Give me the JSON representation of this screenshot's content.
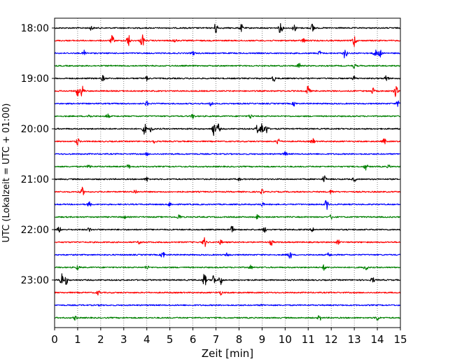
{
  "chart_data": {
    "type": "line",
    "subtype": "helicorder",
    "xlabel": "Zeit  [min]",
    "ylabel": "UTC (Lokalzeit = UTC + 01:00)",
    "xlim": [
      0,
      15
    ],
    "x_ticks": [
      0,
      1,
      2,
      3,
      4,
      5,
      6,
      7,
      8,
      9,
      10,
      11,
      12,
      13,
      14,
      15
    ],
    "vertical_grid": true,
    "y_ticks": [
      "18:00",
      "19:00",
      "20:00",
      "21:00",
      "22:00",
      "23:00"
    ],
    "trace_colors": [
      "#000000",
      "#ff0000",
      "#0000ff",
      "#008000"
    ],
    "traces": [
      {
        "time": "18:00",
        "events": [
          [
            1.6,
            3
          ],
          [
            7.0,
            8
          ],
          [
            8.1,
            5
          ],
          [
            9.8,
            9
          ],
          [
            10.4,
            5
          ],
          [
            11.2,
            7
          ]
        ]
      },
      {
        "time": "18:15",
        "events": [
          [
            2.5,
            7
          ],
          [
            3.2,
            9
          ],
          [
            3.8,
            10
          ],
          [
            5.2,
            3
          ],
          [
            10.8,
            3
          ],
          [
            13.0,
            9
          ]
        ]
      },
      {
        "time": "18:30",
        "events": [
          [
            1.3,
            4
          ],
          [
            6.0,
            3
          ],
          [
            11.5,
            3
          ],
          [
            12.6,
            8
          ],
          [
            13.9,
            5
          ],
          [
            14.1,
            7
          ]
        ]
      },
      {
        "time": "18:45",
        "events": [
          [
            10.6,
            4
          ],
          [
            13.0,
            3
          ]
        ]
      },
      {
        "time": "19:00",
        "events": [
          [
            2.1,
            4
          ],
          [
            4.0,
            3
          ],
          [
            9.5,
            4
          ],
          [
            13.0,
            3
          ],
          [
            14.4,
            5
          ]
        ]
      },
      {
        "time": "19:15",
        "events": [
          [
            1.0,
            7
          ],
          [
            1.2,
            8
          ],
          [
            11.0,
            8
          ],
          [
            13.8,
            4
          ],
          [
            14.8,
            8
          ]
        ]
      },
      {
        "time": "19:30",
        "events": [
          [
            4.0,
            3
          ],
          [
            6.8,
            4
          ],
          [
            10.4,
            3
          ],
          [
            14.9,
            4
          ]
        ]
      },
      {
        "time": "19:45",
        "events": [
          [
            1.5,
            3
          ],
          [
            2.3,
            3
          ],
          [
            6.0,
            3
          ],
          [
            8.5,
            3
          ]
        ]
      },
      {
        "time": "20:00",
        "events": [
          [
            3.9,
            8
          ],
          [
            4.2,
            5
          ],
          [
            6.9,
            9
          ],
          [
            7.1,
            7
          ],
          [
            8.8,
            6
          ],
          [
            9.0,
            11
          ],
          [
            9.2,
            6
          ]
        ]
      },
      {
        "time": "20:15",
        "events": [
          [
            1.0,
            5
          ],
          [
            4.3,
            3
          ],
          [
            9.7,
            5
          ],
          [
            11.2,
            4
          ],
          [
            14.3,
            4
          ]
        ]
      },
      {
        "time": "20:30",
        "events": [
          [
            4.0,
            2
          ],
          [
            10.0,
            3
          ]
        ]
      },
      {
        "time": "20:45",
        "events": [
          [
            1.5,
            3
          ],
          [
            3.2,
            3
          ],
          [
            13.5,
            5
          ],
          [
            14.5,
            2
          ]
        ]
      },
      {
        "time": "21:00",
        "events": [
          [
            4.0,
            3
          ],
          [
            8.0,
            2
          ],
          [
            11.7,
            5
          ],
          [
            13.0,
            3
          ]
        ]
      },
      {
        "time": "21:15",
        "events": [
          [
            1.2,
            6
          ],
          [
            3.5,
            3
          ],
          [
            9.0,
            3
          ],
          [
            12.0,
            3
          ]
        ]
      },
      {
        "time": "21:30",
        "events": [
          [
            1.5,
            4
          ],
          [
            5.0,
            3
          ],
          [
            9.0,
            3
          ],
          [
            11.8,
            7
          ]
        ]
      },
      {
        "time": "21:45",
        "events": [
          [
            3.0,
            3
          ],
          [
            5.4,
            4
          ],
          [
            8.8,
            3
          ],
          [
            12.0,
            3
          ]
        ]
      },
      {
        "time": "22:00",
        "events": [
          [
            0.2,
            4
          ],
          [
            1.5,
            3
          ],
          [
            7.7,
            5
          ],
          [
            9.1,
            4
          ],
          [
            11.2,
            3
          ]
        ]
      },
      {
        "time": "22:15",
        "events": [
          [
            3.7,
            3
          ],
          [
            6.5,
            7
          ],
          [
            7.2,
            3
          ],
          [
            9.4,
            4
          ],
          [
            12.3,
            3
          ]
        ]
      },
      {
        "time": "22:30",
        "events": [
          [
            4.7,
            6
          ],
          [
            7.5,
            3
          ],
          [
            10.2,
            7
          ],
          [
            11.9,
            3
          ]
        ]
      },
      {
        "time": "22:45",
        "events": [
          [
            1.0,
            3
          ],
          [
            4.0,
            3
          ],
          [
            8.5,
            3
          ],
          [
            11.7,
            4
          ],
          [
            13.5,
            5
          ]
        ]
      },
      {
        "time": "23:00",
        "events": [
          [
            0.3,
            9
          ],
          [
            0.5,
            6
          ],
          [
            6.5,
            10
          ],
          [
            6.9,
            8
          ],
          [
            7.2,
            7
          ],
          [
            13.8,
            4
          ]
        ]
      },
      {
        "time": "23:15",
        "events": [
          [
            1.9,
            3
          ],
          [
            7.2,
            3
          ]
        ]
      },
      {
        "time": "23:30",
        "events": [
          [
            2.0,
            1
          ],
          [
            9.0,
            1
          ]
        ]
      },
      {
        "time": "23:45",
        "events": [
          [
            0.9,
            3
          ],
          [
            11.5,
            4
          ],
          [
            14.0,
            4
          ]
        ]
      }
    ]
  }
}
